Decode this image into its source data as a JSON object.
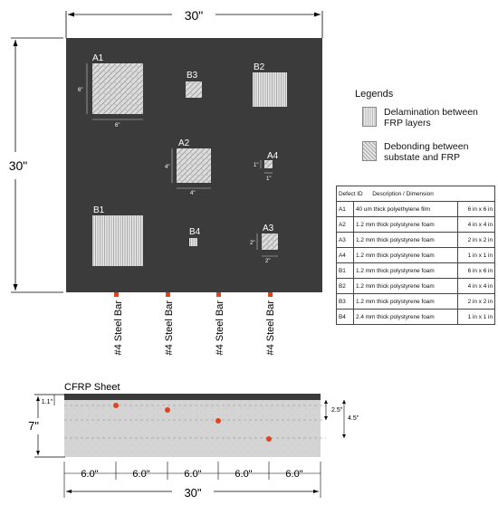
{
  "top_view": {
    "width_label": "30\"",
    "height_label": "30\"",
    "defects": [
      {
        "id": "A1",
        "pattern": "hatch",
        "dim_w": "6\"",
        "dim_h": "6\""
      },
      {
        "id": "B3",
        "pattern": "hatch"
      },
      {
        "id": "B2",
        "pattern": "vertical"
      },
      {
        "id": "A2",
        "pattern": "hatch",
        "dim_w": "4\"",
        "dim_h": "4\""
      },
      {
        "id": "A4",
        "pattern": "hatch",
        "dim_w": "1\"",
        "dim_h": "1\""
      },
      {
        "id": "B1",
        "pattern": "vertical"
      },
      {
        "id": "B4",
        "pattern": "vertical"
      },
      {
        "id": "A3",
        "pattern": "hatch",
        "dim_w": "2\"",
        "dim_h": "2\""
      }
    ],
    "steel_bars": [
      "#4 Steel Bar",
      "#4 Steel Bar",
      "#4 Steel Bar",
      "#4 Steel Bar"
    ]
  },
  "legend": {
    "title": "Legends",
    "items": [
      {
        "pattern": "vertical",
        "label": "Delamination between FRP layers"
      },
      {
        "pattern": "hatch",
        "label": "Debonding between substate and FRP"
      }
    ]
  },
  "table": {
    "headers": [
      "Defect ID",
      "Description / Dimension",
      ""
    ],
    "rows": [
      [
        "A1",
        "40 um thick polyethylene film",
        "6 in x 6 in"
      ],
      [
        "A2",
        "1.2 mm thick polystyrene foam",
        "4 in x 4 in"
      ],
      [
        "A3",
        "1.2 mm thick polystyrene foam",
        "2 in x 2 in"
      ],
      [
        "A4",
        "1.2 mm thick polystyrene foam",
        "1 in x 1 in"
      ],
      [
        "B1",
        "1.2 mm thick polystyrene foam",
        "6 in x 6 in"
      ],
      [
        "B2",
        "1.2 mm thick polystyrene foam",
        "4 in x 4 in"
      ],
      [
        "B3",
        "1.2 mm thick polystyrene foam",
        "2 in x 2 in"
      ],
      [
        "B4",
        "2.4 mm thick polystyrene foam",
        "1 in x 1 in"
      ]
    ]
  },
  "section_view": {
    "title": "CFRP Sheet",
    "height_label": "7\"",
    "width_label": "30\"",
    "dims": {
      "cover": "1.1\"",
      "depth_a": "2.5\"",
      "depth_b": "4.5\""
    },
    "spacing": [
      "6.0\"",
      "6.0\"",
      "6.0\"",
      "6.0\"",
      "6.0\""
    ]
  },
  "colors": {
    "slab": "#3b3b3b",
    "bar": "#e2421d",
    "concrete": "#d4d4d4",
    "cfrp": "#3a3a3a"
  }
}
